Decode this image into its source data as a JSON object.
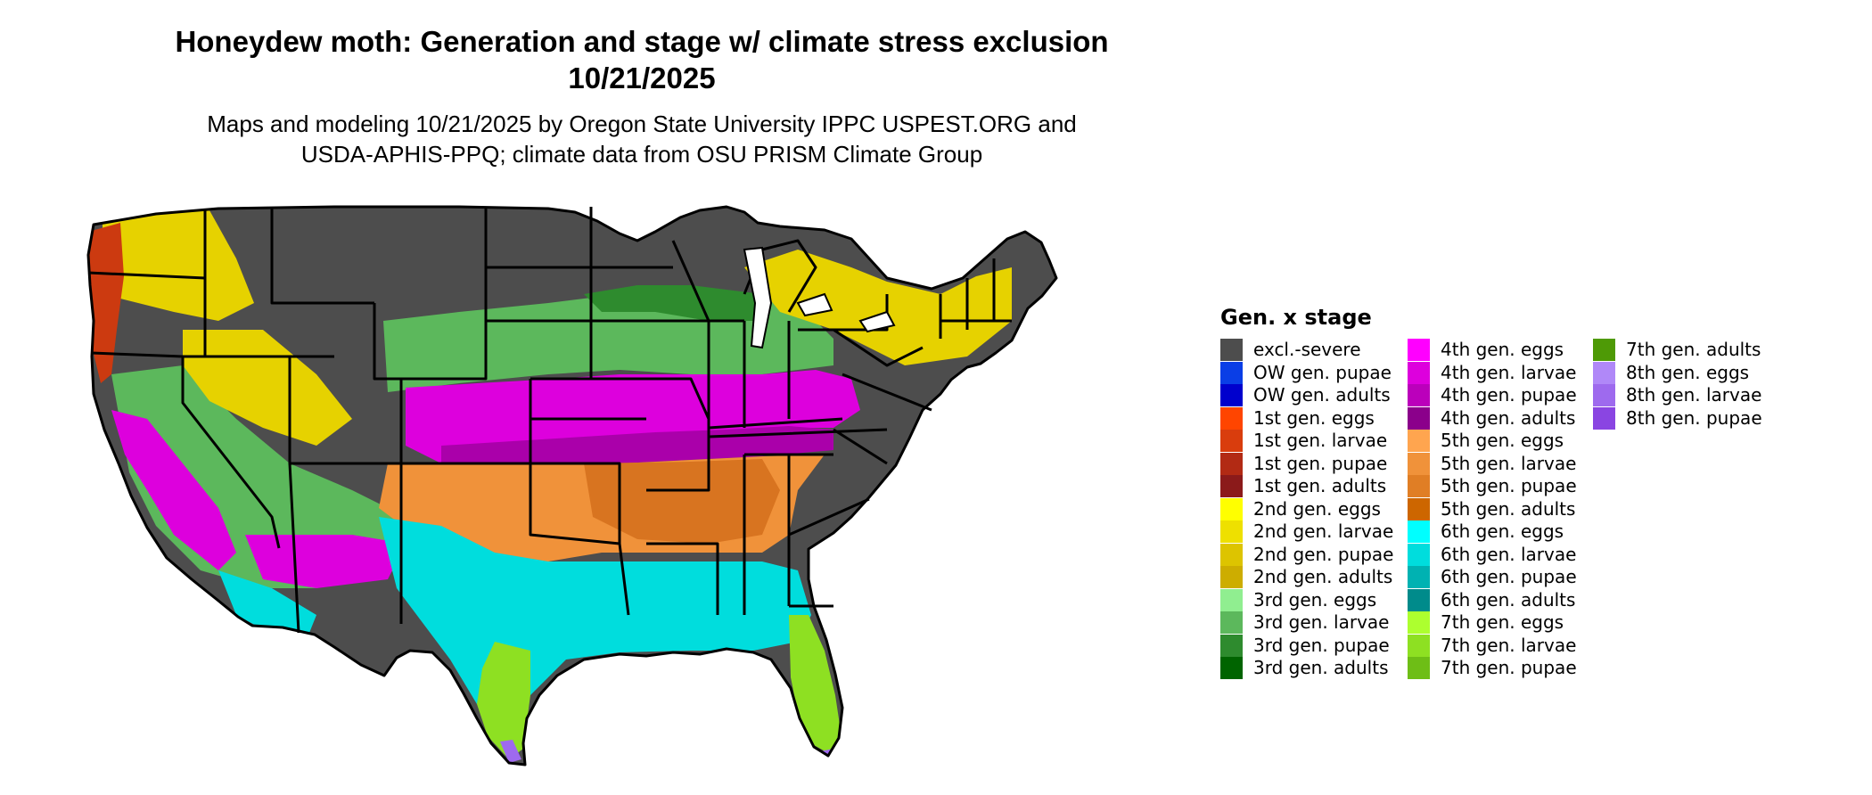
{
  "header": {
    "title_line1": "Honeydew moth: Generation and stage w/ climate stress exclusion",
    "title_line2": "10/21/2025",
    "subtitle_line1": "Maps and modeling 10/21/2025 by Oregon State University IPPC USPEST.ORG and",
    "subtitle_line2": "USDA-APHIS-PPQ; climate data from OSU PRISM Climate Group"
  },
  "legend": {
    "title": "Gen. x stage",
    "columns": [
      [
        {
          "label": "excl.-severe",
          "color": "#4d4d4d"
        },
        {
          "label": "OW gen. pupae",
          "color": "#0a3ee6"
        },
        {
          "label": "OW gen. adults",
          "color": "#0000cd"
        },
        {
          "label": "1st gen. eggs",
          "color": "#ff4500"
        },
        {
          "label": "1st gen. larvae",
          "color": "#d93d0d"
        },
        {
          "label": "1st gen. pupae",
          "color": "#b22a14"
        },
        {
          "label": "1st gen. adults",
          "color": "#8b1a1a"
        },
        {
          "label": "2nd gen. eggs",
          "color": "#ffff00"
        },
        {
          "label": "2nd gen. larvae",
          "color": "#eee000"
        },
        {
          "label": "2nd gen. pupae",
          "color": "#ddc400"
        },
        {
          "label": "2nd gen. adults",
          "color": "#cdad00"
        },
        {
          "label": "3rd gen. eggs",
          "color": "#90ee90"
        },
        {
          "label": "3rd gen. larvae",
          "color": "#5cb85c"
        },
        {
          "label": "3rd gen. pupae",
          "color": "#2e8b2e"
        },
        {
          "label": "3rd gen. adults",
          "color": "#006400"
        }
      ],
      [
        {
          "label": "4th gen. eggs",
          "color": "#ff00ff"
        },
        {
          "label": "4th gen. larvae",
          "color": "#dd00dd"
        },
        {
          "label": "4th gen. pupae",
          "color": "#bb00bb"
        },
        {
          "label": "4th gen. adults",
          "color": "#8b008b"
        },
        {
          "label": "5th gen. eggs",
          "color": "#ffa54f"
        },
        {
          "label": "5th gen. larvae",
          "color": "#f0923a"
        },
        {
          "label": "5th gen. pupae",
          "color": "#e07e25"
        },
        {
          "label": "5th gen. adults",
          "color": "#cd6600"
        },
        {
          "label": "6th gen. eggs",
          "color": "#00ffff"
        },
        {
          "label": "6th gen. larvae",
          "color": "#00dddd"
        },
        {
          "label": "6th gen. pupae",
          "color": "#00b2b2"
        },
        {
          "label": "6th gen. adults",
          "color": "#008b8b"
        },
        {
          "label": "7th gen. eggs",
          "color": "#adff2f"
        },
        {
          "label": "7th gen. larvae",
          "color": "#8ee022"
        },
        {
          "label": "7th gen. pupae",
          "color": "#6ebe16"
        }
      ],
      [
        {
          "label": "7th gen. adults",
          "color": "#4e9a06"
        },
        {
          "label": "8th gen. eggs",
          "color": "#b088f8"
        },
        {
          "label": "8th gen. larvae",
          "color": "#9e6aee"
        },
        {
          "label": "8th gen. pupae",
          "color": "#8a45e2"
        }
      ]
    ]
  },
  "map_colors": {
    "excluded": "#4d4d4d",
    "gen1": "#cc3a10",
    "gen2": "#e6d200",
    "gen3": "#5cb85c",
    "gen3_dark": "#2e8b2e",
    "gen4": "#dd00dd",
    "gen4_dark": "#aa00aa",
    "gen5": "#f0923a",
    "gen5_dark": "#d87420",
    "gen6": "#00dddd",
    "gen7": "#8ee022",
    "gen8": "#9e6aee",
    "boundary": "#000000"
  }
}
